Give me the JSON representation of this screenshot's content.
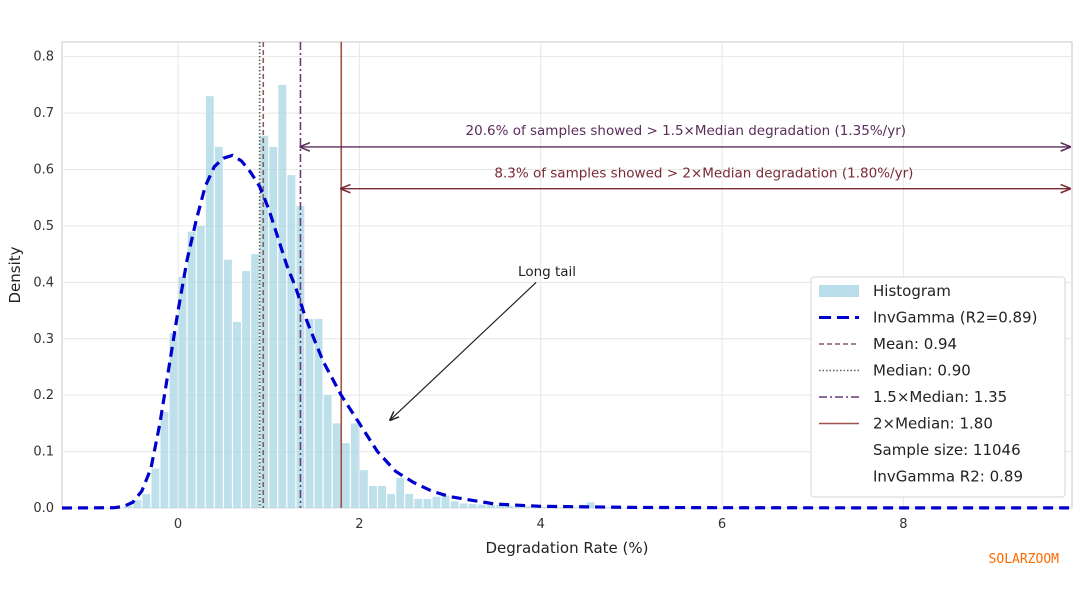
{
  "chart_data": {
    "type": "bar",
    "xlabel": "Degradation Rate (%)",
    "ylabel": "Density",
    "xlim": [
      -1.28,
      9.86
    ],
    "ylim": [
      0,
      0.826
    ],
    "grid": true,
    "x_ticks": [
      0,
      2,
      4,
      6,
      8
    ],
    "x_tick_labels": [
      "0",
      "2",
      "4",
      "6",
      "8"
    ],
    "y_ticks": [
      0,
      0.1,
      0.2,
      0.3,
      0.4,
      0.5,
      0.6,
      0.7,
      0.8
    ],
    "y_tick_labels": [
      "0.0",
      "0.1",
      "0.2",
      "0.3",
      "0.4",
      "0.5",
      "0.6",
      "0.7",
      "0.8"
    ],
    "histogram": {
      "name": "Histogram",
      "bin_width": 0.1,
      "bin_starts": [
        -0.6,
        -0.5,
        -0.4,
        -0.3,
        -0.2,
        -0.1,
        0.0,
        0.1,
        0.2,
        0.3,
        0.4,
        0.5,
        0.6,
        0.7,
        0.8,
        0.9,
        1.0,
        1.1,
        1.2,
        1.3,
        1.4,
        1.5,
        1.6,
        1.7,
        1.8,
        1.9,
        2.0,
        2.1,
        2.2,
        2.3,
        2.4,
        2.5,
        2.6,
        2.7,
        2.8,
        2.9,
        3.0,
        3.1,
        3.2,
        3.3,
        3.4,
        3.5,
        3.6,
        3.7,
        3.8,
        3.9,
        4.0,
        4.1,
        4.2,
        4.3,
        4.4,
        4.5,
        4.6,
        4.7
      ],
      "values": [
        0.004,
        0.014,
        0.025,
        0.07,
        0.17,
        0.31,
        0.41,
        0.49,
        0.5,
        0.73,
        0.64,
        0.44,
        0.33,
        0.42,
        0.45,
        0.66,
        0.64,
        0.75,
        0.59,
        0.535,
        0.335,
        0.335,
        0.2,
        0.15,
        0.115,
        0.15,
        0.067,
        0.039,
        0.039,
        0.025,
        0.053,
        0.025,
        0.016,
        0.016,
        0.02,
        0.022,
        0.012,
        0.008,
        0.007,
        0.006,
        0.005,
        0.005,
        0.004,
        0.003,
        0.003,
        0.002,
        0.002,
        0.002,
        0.001,
        0.001,
        0.001,
        0.01,
        0.001,
        0.001
      ],
      "color": "#add8e6"
    },
    "fit_curve": {
      "name": "InvGamma (R2=0.89)",
      "color": "#0000cc",
      "x": [
        -1.28,
        -0.7,
        -0.6,
        -0.5,
        -0.4,
        -0.3,
        -0.2,
        -0.1,
        0.0,
        0.1,
        0.2,
        0.3,
        0.4,
        0.5,
        0.6,
        0.7,
        0.8,
        0.9,
        1.0,
        1.1,
        1.2,
        1.3,
        1.4,
        1.5,
        1.6,
        1.7,
        1.8,
        2.0,
        2.1,
        2.2,
        2.4,
        2.6,
        2.8,
        3.0,
        3.5,
        4.0,
        5.0,
        6.0,
        8.0,
        9.86
      ],
      "y": [
        0,
        0.0005,
        0.003,
        0.01,
        0.03,
        0.07,
        0.15,
        0.25,
        0.35,
        0.44,
        0.51,
        0.57,
        0.605,
        0.62,
        0.625,
        0.615,
        0.595,
        0.57,
        0.53,
        0.48,
        0.43,
        0.39,
        0.34,
        0.3,
        0.26,
        0.23,
        0.2,
        0.15,
        0.125,
        0.1,
        0.065,
        0.045,
        0.03,
        0.02,
        0.007,
        0.003,
        0.001,
        0.0005,
        0.0002,
        0.0001
      ]
    },
    "vlines": [
      {
        "name": "Mean: 0.94",
        "x": 0.94,
        "style": "dashed",
        "color": "#8b5a5a"
      },
      {
        "name": "Median: 0.90",
        "x": 0.9,
        "style": "dotted",
        "color": "#4f6650"
      },
      {
        "name": "1.5×Median: 1.35",
        "x": 1.35,
        "style": "dashdot",
        "color": "#6a3d7a"
      },
      {
        "name": "2×Median: 1.80",
        "x": 1.8,
        "style": "solid",
        "color": "#a0524a"
      }
    ],
    "annotations": [
      {
        "text": "20.6% of samples showed > 1.5×Median degradation (1.35%/yr)",
        "x_from": 1.35,
        "x_to": 9.86,
        "y": 0.64,
        "text_x": 5.6,
        "text_y": 0.67,
        "color": "#5a2d5a"
      },
      {
        "text": "8.3% of samples showed > 2×Median degradation (1.80%/yr)",
        "x_from": 1.8,
        "x_to": 9.86,
        "y": 0.566,
        "text_x": 5.8,
        "text_y": 0.595,
        "color": "#7a2a35"
      },
      {
        "text": "Long tail",
        "x_from": 3.95,
        "y_from": 0.4,
        "x_to": 2.34,
        "y_to": 0.156,
        "text_x": 4.07,
        "text_y": 0.42,
        "color": "#222222"
      }
    ],
    "legend": {
      "placement": "lower-right",
      "entries": [
        "Histogram",
        "InvGamma (R2=0.89)",
        "Mean: 0.94",
        "Median: 0.90",
        "1.5×Median: 1.35",
        "2×Median: 1.80",
        "Sample size: 11046",
        "InvGamma R2: 0.89"
      ]
    }
  },
  "watermark": "SOLARZOOM"
}
